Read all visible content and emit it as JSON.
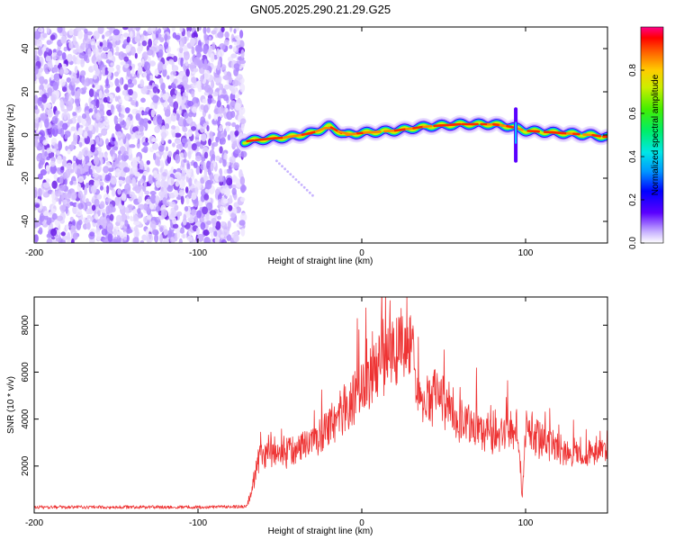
{
  "chart_data": [
    {
      "type": "heatmap",
      "title": "GN05.2025.290.21.29.G25",
      "xlabel": "Height of straight line (km)",
      "ylabel": "Frequency (Hz)",
      "xlim": [
        -200,
        150
      ],
      "ylim": [
        -50,
        50
      ],
      "xticks": [
        -200,
        -100,
        0,
        100
      ],
      "yticks": [
        -40,
        -20,
        0,
        20,
        40
      ],
      "colorbar": {
        "label": "Normalized spectral amplitude",
        "range": [
          0,
          1
        ],
        "ticks": [
          "0.0",
          "0.2",
          "0.4",
          "0.6",
          "0.8"
        ]
      },
      "noise_region_x": [
        -200,
        -72
      ],
      "ridge": {
        "x": [
          -72,
          -60,
          -45,
          -30,
          -20,
          -10,
          0,
          20,
          40,
          60,
          80,
          90,
          95,
          100,
          120,
          140,
          150
        ],
        "y": [
          -3,
          -2,
          -1,
          1,
          4,
          0,
          1,
          2,
          4,
          5,
          5,
          4,
          3,
          2,
          1,
          0,
          -1
        ]
      },
      "spike": {
        "x": 94,
        "y_range": [
          -12,
          12
        ]
      },
      "faint_tail": {
        "x": [
          -52,
          -30
        ],
        "y": [
          -12,
          -28
        ]
      }
    },
    {
      "type": "line",
      "xlabel": "Height of straight line (km)",
      "ylabel": "SNR (10 * v/v)",
      "xlim": [
        -200,
        150
      ],
      "ylim": [
        0,
        9200
      ],
      "xticks": [
        -200,
        -100,
        0,
        100
      ],
      "yticks": [
        2000,
        4000,
        6000,
        8000
      ],
      "series": [
        {
          "name": "SNR",
          "color": "#ee3333",
          "envelope_x": [
            -200,
            -150,
            -100,
            -70,
            -62,
            -55,
            -45,
            -30,
            -15,
            0,
            10,
            20,
            25,
            28,
            32,
            35,
            45,
            60,
            80,
            95,
            98,
            100,
            110,
            125,
            140,
            150
          ],
          "envelope_y": [
            250,
            250,
            250,
            270,
            2600,
            2900,
            2700,
            3200,
            4300,
            5800,
            6700,
            7400,
            7900,
            8300,
            7000,
            4800,
            5400,
            4300,
            3600,
            3900,
            800,
            3900,
            3300,
            2700,
            2800,
            2900
          ]
        }
      ]
    }
  ]
}
